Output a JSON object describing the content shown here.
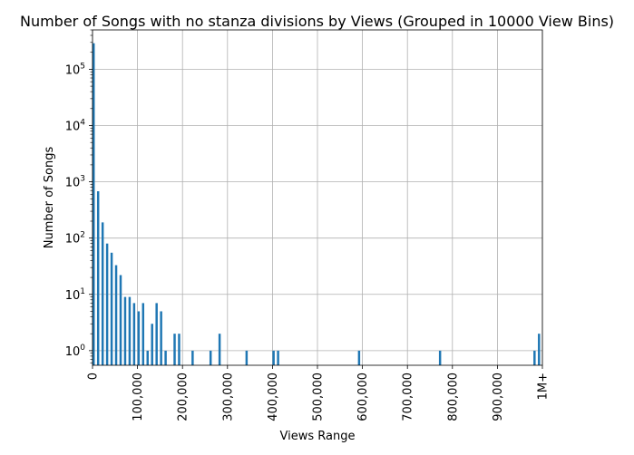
{
  "chart_data": {
    "type": "bar",
    "title": "Number of Songs with no stanza divisions by Views (Grouped in 10000 View Bins)",
    "xlabel": "Views Range",
    "ylabel": "Number of Songs",
    "y_scale": "log",
    "ylim": [
      0.55,
      500000
    ],
    "xlim": [
      0,
      1000000
    ],
    "grid": true,
    "bar_color": "#1f77b4",
    "x_ticks": [
      {
        "value": 0,
        "label": "0"
      },
      {
        "value": 100000,
        "label": "100,000"
      },
      {
        "value": 200000,
        "label": "200,000"
      },
      {
        "value": 300000,
        "label": "300,000"
      },
      {
        "value": 400000,
        "label": "400,000"
      },
      {
        "value": 500000,
        "label": "500,000"
      },
      {
        "value": 600000,
        "label": "600,000"
      },
      {
        "value": 700000,
        "label": "700,000"
      },
      {
        "value": 800000,
        "label": "800,000"
      },
      {
        "value": 900000,
        "label": "900,000"
      },
      {
        "value": 1000000,
        "label": "1M+"
      }
    ],
    "y_ticks": [
      {
        "value": 1,
        "base": "10",
        "exp": "0"
      },
      {
        "value": 10,
        "base": "10",
        "exp": "1"
      },
      {
        "value": 100,
        "base": "10",
        "exp": "2"
      },
      {
        "value": 1000,
        "base": "10",
        "exp": "3"
      },
      {
        "value": 10000,
        "base": "10",
        "exp": "4"
      },
      {
        "value": 100000,
        "base": "10",
        "exp": "5"
      }
    ],
    "bins": [
      {
        "x": 0,
        "value": 290000
      },
      {
        "x": 10000,
        "value": 680
      },
      {
        "x": 20000,
        "value": 190
      },
      {
        "x": 30000,
        "value": 80
      },
      {
        "x": 40000,
        "value": 55
      },
      {
        "x": 50000,
        "value": 33
      },
      {
        "x": 60000,
        "value": 22
      },
      {
        "x": 70000,
        "value": 9
      },
      {
        "x": 80000,
        "value": 9
      },
      {
        "x": 90000,
        "value": 7
      },
      {
        "x": 100000,
        "value": 5
      },
      {
        "x": 110000,
        "value": 7
      },
      {
        "x": 120000,
        "value": 1
      },
      {
        "x": 130000,
        "value": 3
      },
      {
        "x": 140000,
        "value": 7
      },
      {
        "x": 150000,
        "value": 5
      },
      {
        "x": 160000,
        "value": 1
      },
      {
        "x": 180000,
        "value": 2
      },
      {
        "x": 190000,
        "value": 2
      },
      {
        "x": 220000,
        "value": 1
      },
      {
        "x": 260000,
        "value": 1
      },
      {
        "x": 280000,
        "value": 2
      },
      {
        "x": 340000,
        "value": 1
      },
      {
        "x": 400000,
        "value": 1
      },
      {
        "x": 410000,
        "value": 1
      },
      {
        "x": 590000,
        "value": 1
      },
      {
        "x": 770000,
        "value": 1
      },
      {
        "x": 980000,
        "value": 1
      },
      {
        "x": 990000,
        "value": 2
      }
    ]
  }
}
